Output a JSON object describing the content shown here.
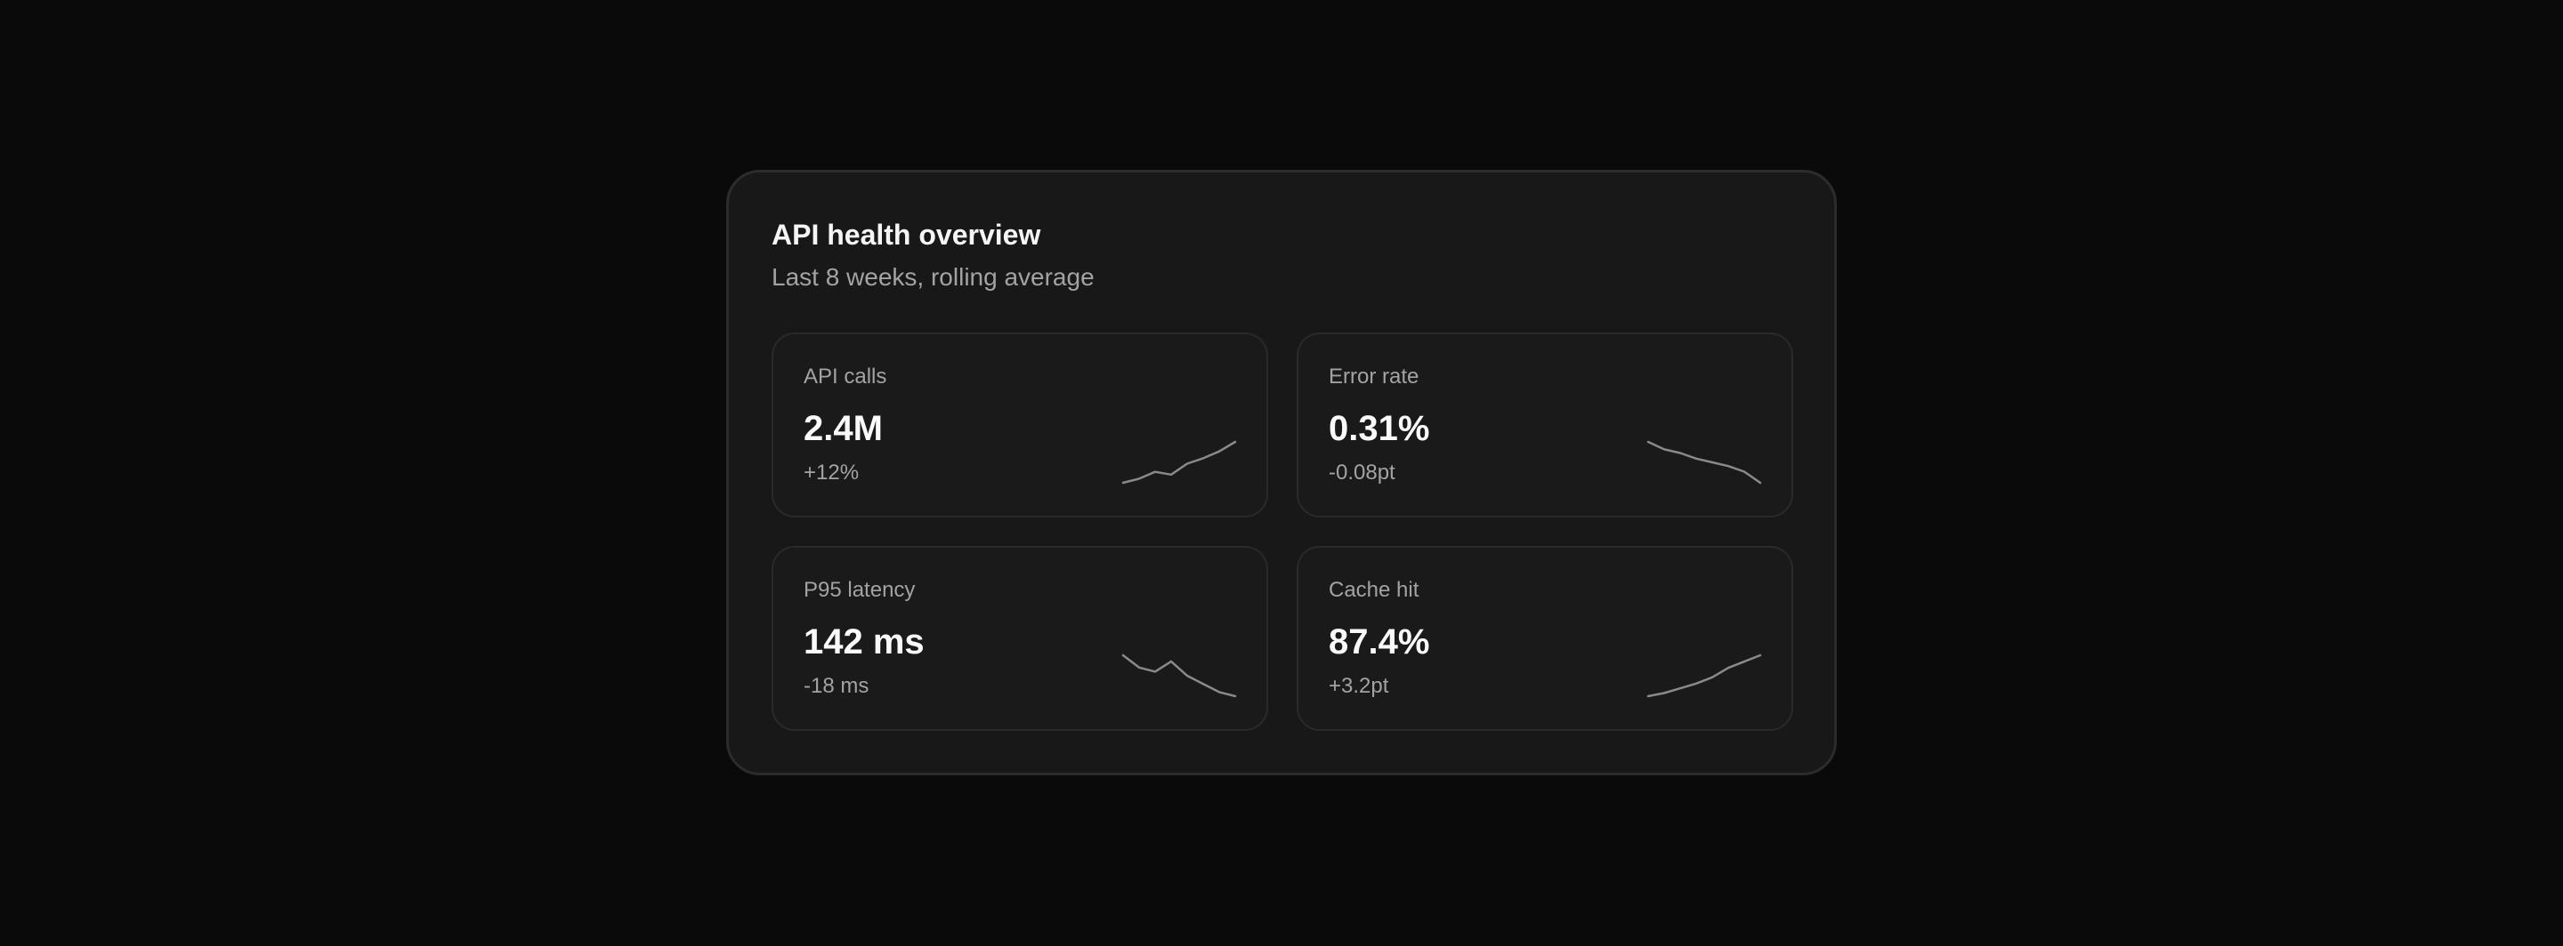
{
  "overview": {
    "title": "API health overview",
    "subtitle": "Last 8 weeks, rolling average"
  },
  "colors": {
    "background": "#0a0a0a",
    "panel": "#181818",
    "card": "#1a1a1a",
    "sparkline": "#8a8a8a"
  },
  "metrics": [
    {
      "label": "API calls",
      "value": "2.4M",
      "delta": "+12%",
      "trend": [
        10,
        13,
        18,
        16,
        24,
        28,
        33,
        40
      ]
    },
    {
      "label": "Error rate",
      "value": "0.31%",
      "delta": "-0.08pt",
      "trend": [
        40,
        36,
        34,
        31,
        29,
        27,
        24,
        18
      ]
    },
    {
      "label": "P95 latency",
      "value": "142 ms",
      "delta": "-18 ms",
      "trend": [
        40,
        34,
        32,
        37,
        30,
        26,
        22,
        20
      ]
    },
    {
      "label": "Cache hit",
      "value": "87.4%",
      "delta": "+3.2pt",
      "trend": [
        10,
        12,
        15,
        18,
        22,
        28,
        32,
        36
      ]
    }
  ]
}
